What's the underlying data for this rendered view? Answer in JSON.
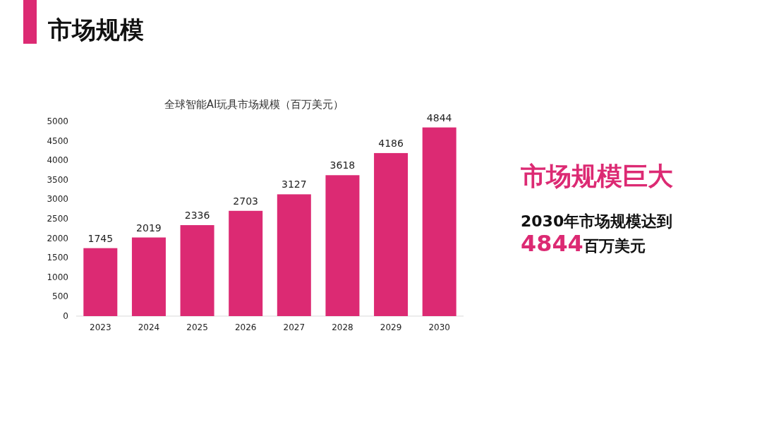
{
  "chart_data": {
    "type": "bar",
    "title": "市场规模",
    "subtitle": "全球智能AI玩具市场规模（百万美元）",
    "categories": [
      "2023",
      "2024",
      "2025",
      "2026",
      "2027",
      "2028",
      "2029",
      "2030"
    ],
    "values": [
      1745,
      2019,
      2336,
      2703,
      3127,
      3618,
      4186,
      4844
    ],
    "color": "#dc2a73",
    "data_labels": true,
    "ylim": [
      0,
      5000
    ],
    "yticks": [
      0,
      500,
      1000,
      1500,
      2000,
      2500,
      3000,
      3500,
      4000,
      4500,
      5000
    ],
    "annotations": [
      "市场规模巨大",
      "2030年市场规模达到",
      "**4844**百万美元"
    ]
  }
}
